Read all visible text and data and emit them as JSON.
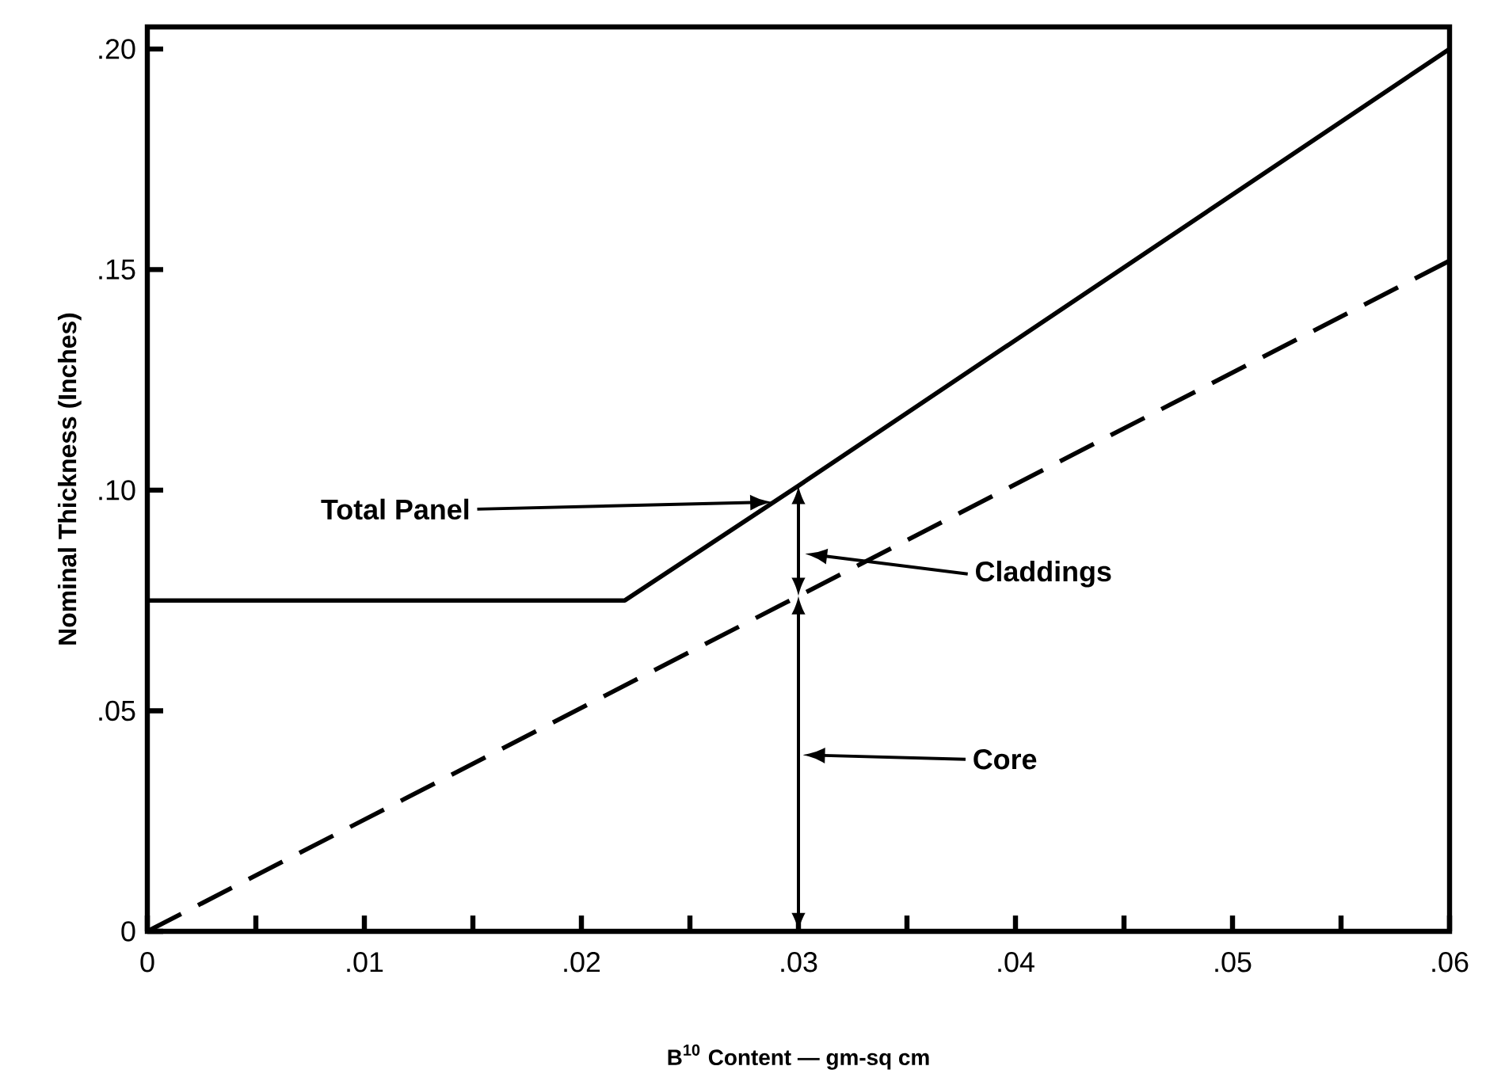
{
  "chart_data": {
    "type": "line",
    "xlabel": "B$^{10}$ Content — gm-sq cm",
    "ylabel": "Nominal Thickness (Inches)",
    "xlim": [
      0,
      0.06
    ],
    "ylim": [
      0,
      0.205
    ],
    "xticks": [
      0,
      {
        "value": 0.005,
        "label": null
      },
      {
        "value": 0.01,
        "label": ".01"
      },
      {
        "value": 0.015,
        "label": null
      },
      {
        "value": 0.02,
        "label": ".02"
      },
      {
        "value": 0.025,
        "label": null
      },
      {
        "value": 0.03,
        "label": ".03"
      },
      {
        "value": 0.035,
        "label": null
      },
      {
        "value": 0.04,
        "label": ".04"
      },
      {
        "value": 0.045,
        "label": null
      },
      {
        "value": 0.05,
        "label": ".05"
      },
      {
        "value": 0.055,
        "label": null
      },
      {
        "value": 0.06,
        "label": ".06"
      }
    ],
    "yticks": [
      0,
      {
        "value": 0.05,
        "label": ".05"
      },
      {
        "value": 0.1,
        "label": ".10"
      },
      {
        "value": 0.15,
        "label": ".15"
      },
      {
        "value": 0.2,
        "label": ".20"
      }
    ],
    "series": [
      {
        "color": "#000000",
        "line_style": "solid",
        "x": [
          0,
          0.022,
          0.03,
          0.06
        ],
        "values": [
          0.075,
          0.075,
          0.101,
          0.2
        ]
      },
      {
        "color": "#000000",
        "line_style": "dashed",
        "x": [
          0,
          0.03,
          0.06
        ],
        "values": [
          0,
          0.076,
          0.152
        ]
      }
    ],
    "annotations": [
      "Total Panel",
      "Claddings",
      "Core"
    ]
  }
}
